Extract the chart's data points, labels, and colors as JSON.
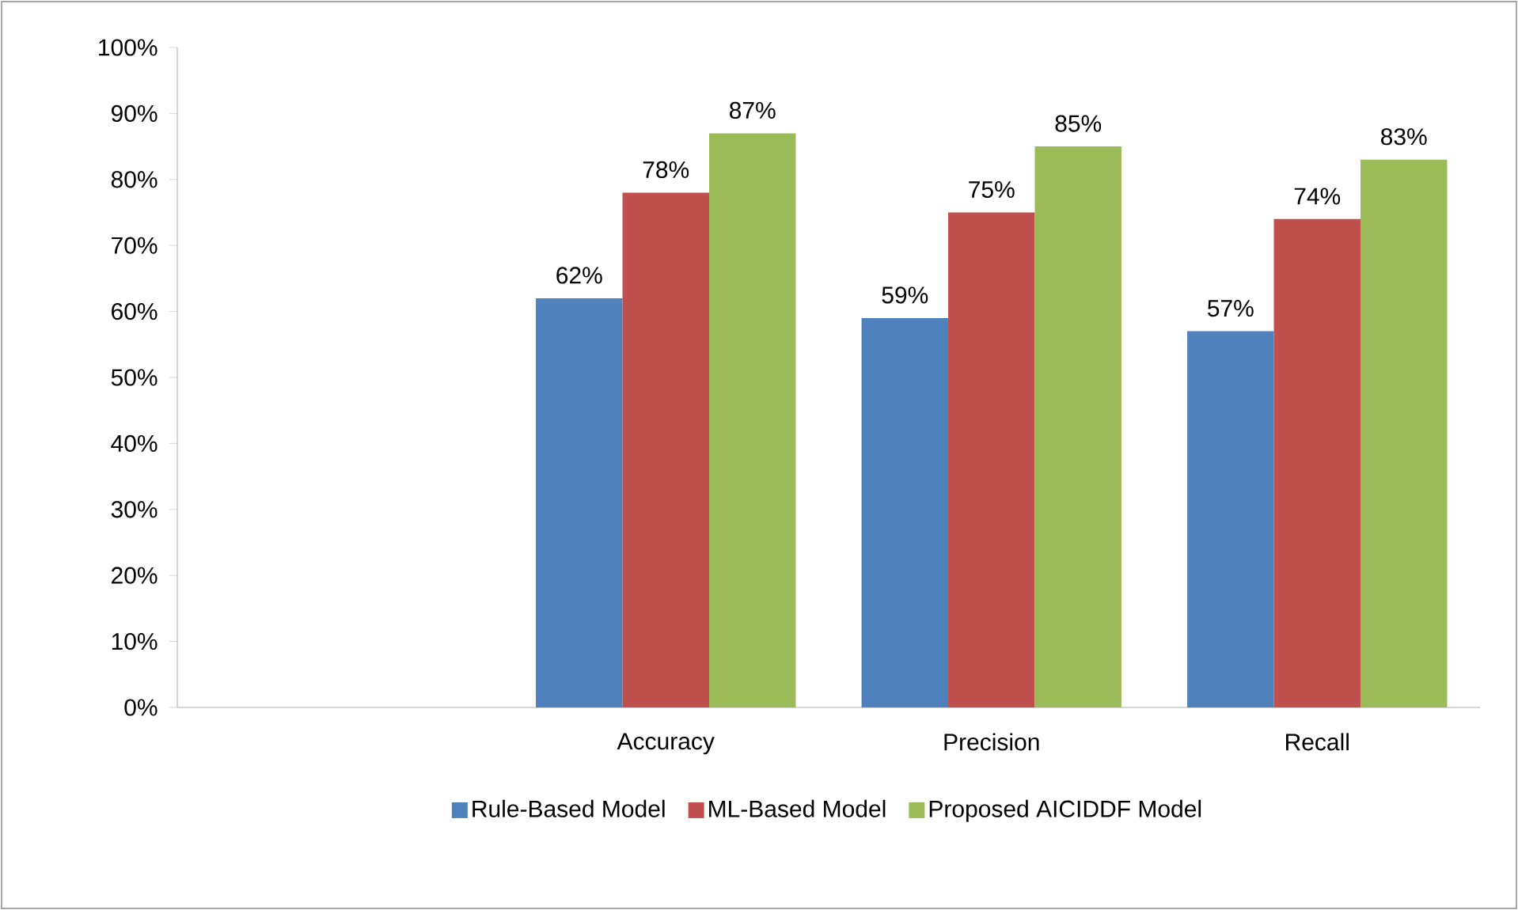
{
  "chart_data": {
    "type": "bar",
    "categories": [
      null,
      "Accuracy",
      "Precision",
      "Recall"
    ],
    "series": [
      {
        "name": "Rule-Based Model",
        "color": "#4f81bd",
        "values": [
          null,
          62,
          59,
          57
        ],
        "value_labels": [
          null,
          "62%",
          "59%",
          "57%"
        ]
      },
      {
        "name": "ML-Based Model",
        "color": "#c0504d",
        "values": [
          null,
          78,
          75,
          74
        ],
        "value_labels": [
          null,
          "78%",
          "75%",
          "74%"
        ]
      },
      {
        "name": "Proposed AICIDDF Model",
        "color": "#9bbb59",
        "values": [
          null,
          87,
          85,
          83
        ],
        "value_labels": [
          null,
          "87%",
          "85%",
          "83%"
        ]
      }
    ],
    "ylim": [
      0,
      100
    ],
    "yticks": [
      {
        "value": 0,
        "label": "0%"
      },
      {
        "value": 10,
        "label": "10%"
      },
      {
        "value": 20,
        "label": "20%"
      },
      {
        "value": 30,
        "label": "30%"
      },
      {
        "value": 40,
        "label": "40%"
      },
      {
        "value": 50,
        "label": "50%"
      },
      {
        "value": 60,
        "label": "60%"
      },
      {
        "value": 70,
        "label": "70%"
      },
      {
        "value": 80,
        "label": "80%"
      },
      {
        "value": 90,
        "label": "90%"
      },
      {
        "value": 100,
        "label": "100%"
      }
    ],
    "grid": false,
    "legend": "bottom"
  }
}
